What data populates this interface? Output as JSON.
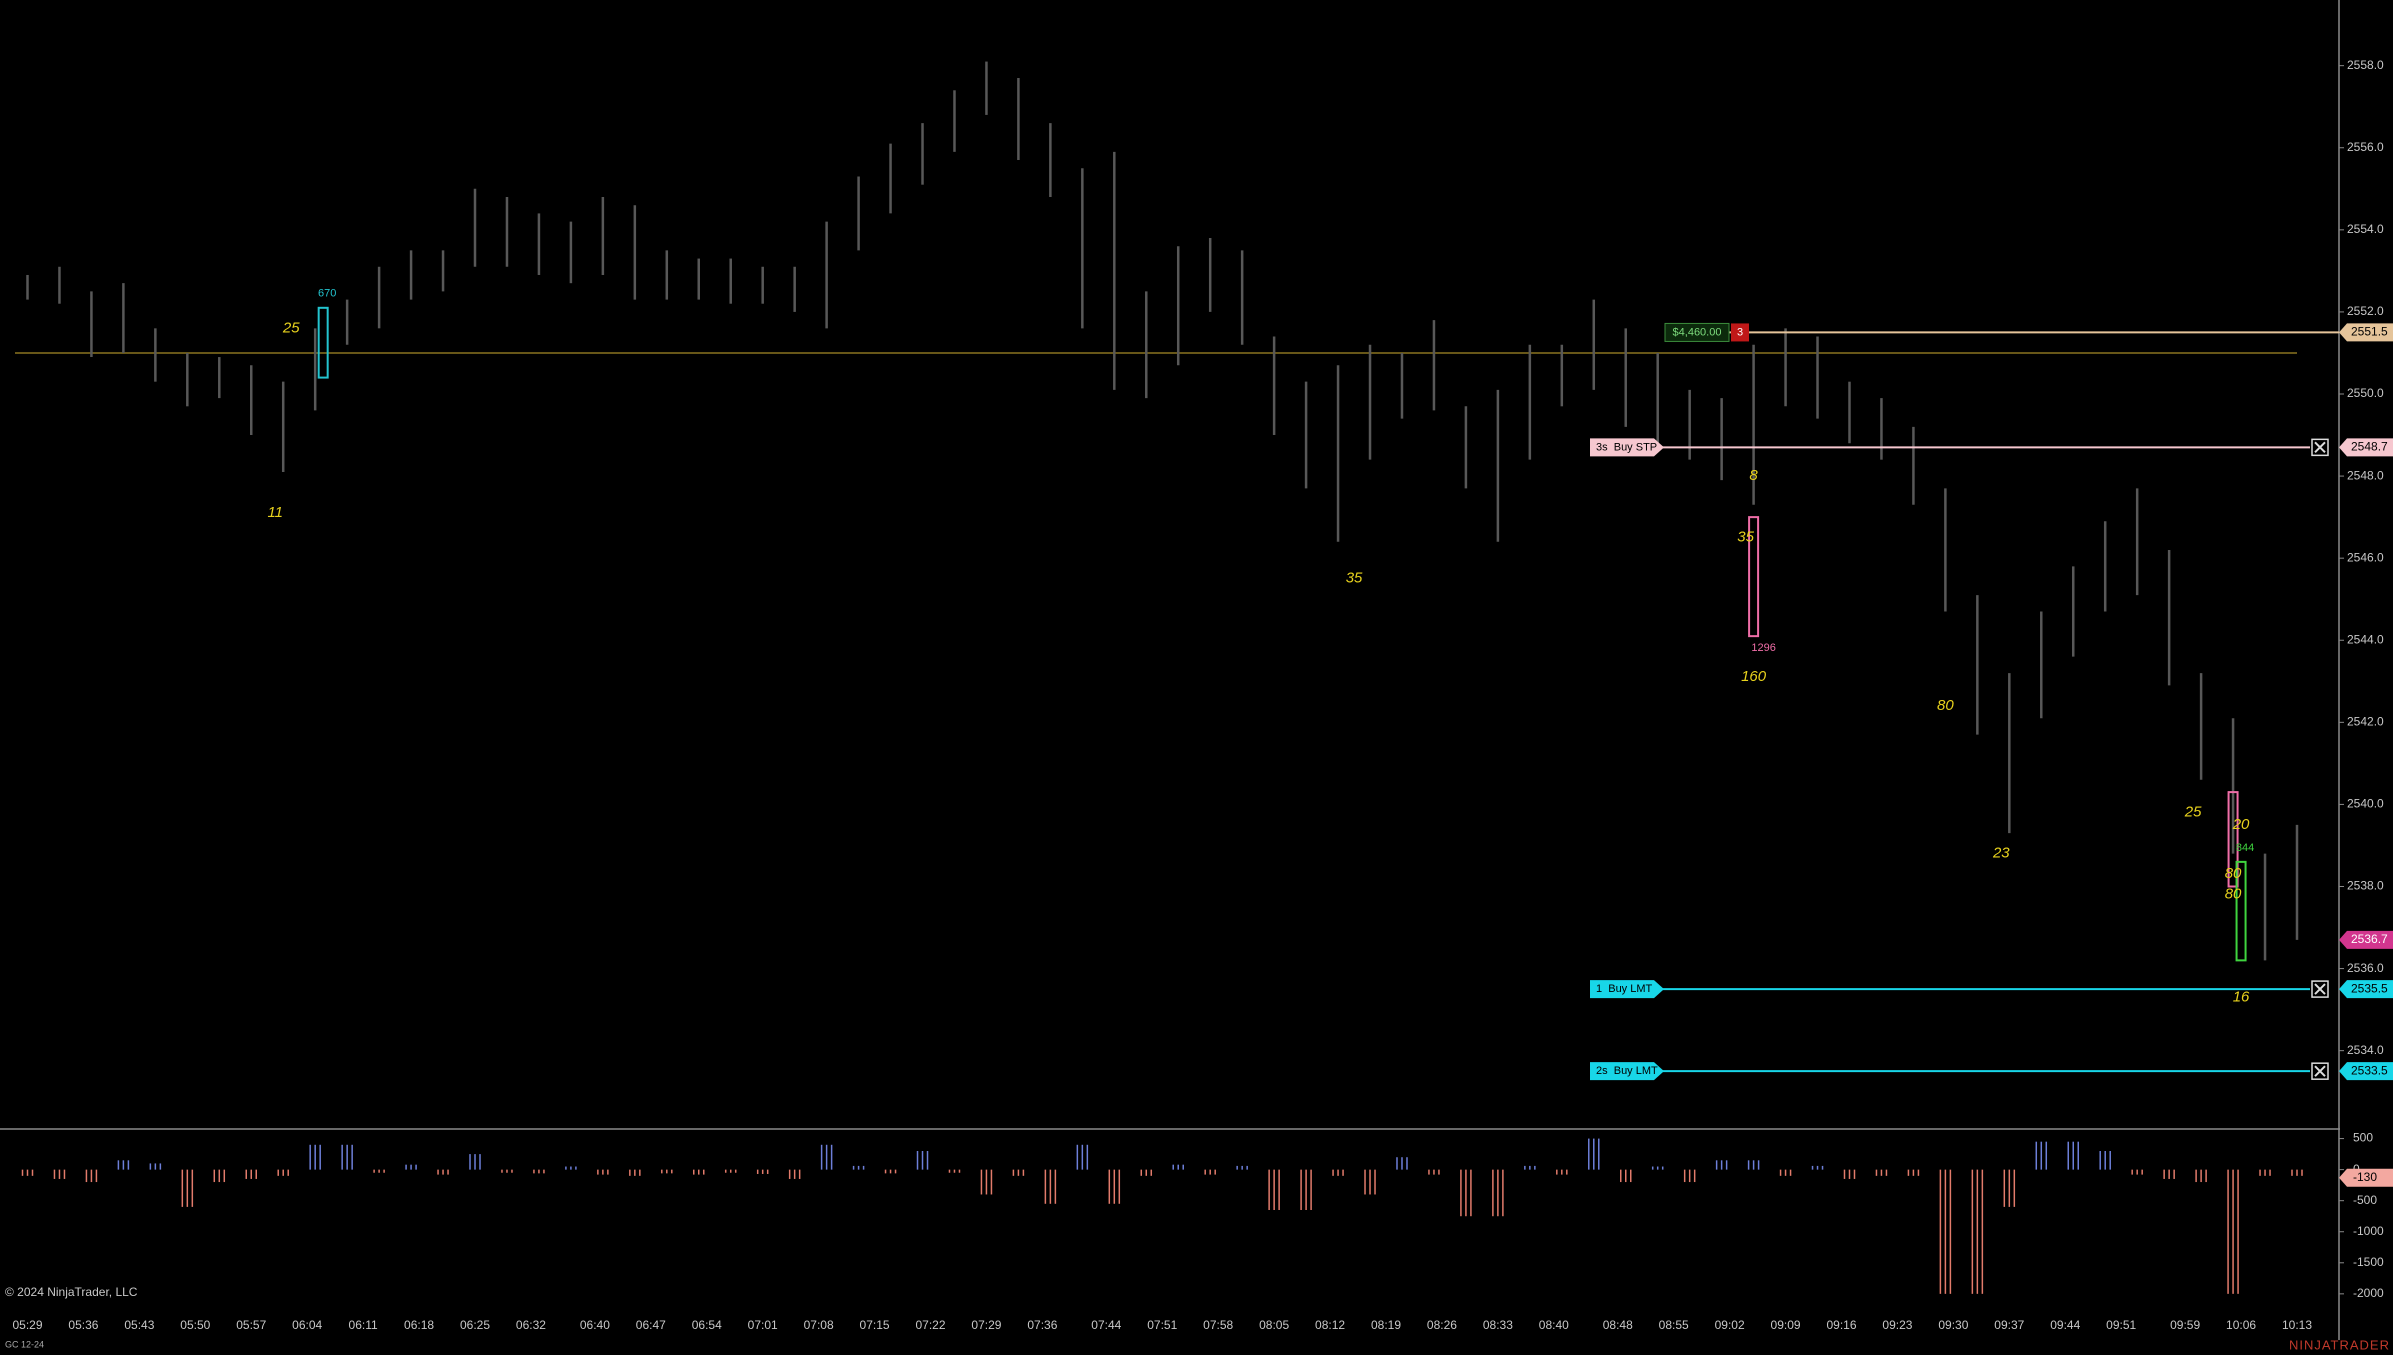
{
  "branding": {
    "copyright": "© 2024 NinjaTrader, LLC",
    "instrument": "GC 12-24",
    "logo": "NINJATRADER"
  },
  "chart_data": [
    {
      "type": "range",
      "color": "#585858",
      "x": [
        "05:29",
        "05:33",
        "05:37",
        "05:41",
        "05:45",
        "05:49",
        "05:53",
        "05:57",
        "06:01",
        "06:05",
        "06:09",
        "06:13",
        "06:17",
        "06:21",
        "06:25",
        "06:29",
        "06:33",
        "06:37",
        "06:41",
        "06:45",
        "06:49",
        "06:53",
        "06:57",
        "07:01",
        "07:05",
        "07:09",
        "07:13",
        "07:17",
        "07:21",
        "07:25",
        "07:29",
        "07:33",
        "07:37",
        "07:41",
        "07:45",
        "07:49",
        "07:53",
        "07:57",
        "08:01",
        "08:05",
        "08:09",
        "08:13",
        "08:17",
        "08:21",
        "08:25",
        "08:29",
        "08:33",
        "08:37",
        "08:41",
        "08:45",
        "08:49",
        "08:53",
        "08:57",
        "09:01",
        "09:05",
        "09:09",
        "09:13",
        "09:17",
        "09:21",
        "09:25",
        "09:29",
        "09:33",
        "09:37",
        "09:41",
        "09:45",
        "09:49",
        "09:53",
        "09:57",
        "10:01",
        "10:05",
        "10:09",
        "10:13"
      ],
      "high": [
        2552.9,
        2553.1,
        2552.5,
        2552.7,
        2551.6,
        2551.0,
        2550.9,
        2550.7,
        2550.3,
        2551.6,
        2552.3,
        2553.1,
        2553.5,
        2553.5,
        2555.0,
        2554.8,
        2554.4,
        2554.2,
        2554.8,
        2554.6,
        2553.5,
        2553.3,
        2553.3,
        2553.1,
        2553.1,
        2554.2,
        2555.3,
        2556.1,
        2556.6,
        2557.4,
        2558.1,
        2557.7,
        2556.6,
        2555.5,
        2555.9,
        2552.5,
        2553.6,
        2553.8,
        2553.5,
        2551.4,
        2550.3,
        2550.7,
        2551.2,
        2551.0,
        2551.8,
        2549.7,
        2550.1,
        2551.2,
        2551.2,
        2552.3,
        2551.6,
        2551.0,
        2550.1,
        2549.9,
        2551.2,
        2551.6,
        2551.4,
        2550.3,
        2549.9,
        2549.2,
        2547.7,
        2545.1,
        2543.2,
        2544.7,
        2545.8,
        2546.9,
        2547.7,
        2546.2,
        2543.2,
        2542.1,
        2538.8,
        2539.5
      ],
      "low": [
        2552.3,
        2552.2,
        2550.9,
        2551.0,
        2550.3,
        2549.7,
        2549.9,
        2549.0,
        2548.1,
        2549.6,
        2551.2,
        2551.6,
        2552.3,
        2552.5,
        2553.1,
        2553.1,
        2552.9,
        2552.7,
        2552.9,
        2552.3,
        2552.3,
        2552.3,
        2552.2,
        2552.2,
        2552.0,
        2551.6,
        2553.5,
        2554.4,
        2555.1,
        2555.9,
        2556.8,
        2555.7,
        2554.8,
        2551.6,
        2550.1,
        2549.9,
        2550.7,
        2552.0,
        2551.2,
        2549.0,
        2547.7,
        2546.4,
        2548.4,
        2549.4,
        2549.6,
        2547.7,
        2546.4,
        2548.4,
        2549.7,
        2550.1,
        2549.2,
        2548.8,
        2548.4,
        2547.9,
        2547.3,
        2549.7,
        2549.4,
        2548.8,
        2548.4,
        2547.3,
        2544.7,
        2541.7,
        2539.3,
        2542.1,
        2543.6,
        2544.7,
        2545.1,
        2542.9,
        2540.6,
        2538.8,
        2536.2,
        2536.7
      ],
      "ylim": [
        2532.14,
        2559.6
      ],
      "yticks": [
        {
          "value": 2534,
          "label": "2534.0"
        },
        {
          "value": 2536,
          "label": "2536.0"
        },
        {
          "value": 2538,
          "label": "2538.0"
        },
        {
          "value": 2540,
          "label": "2540.0"
        },
        {
          "value": 2542,
          "label": "2542.0"
        },
        {
          "value": 2544,
          "label": "2544.0"
        },
        {
          "value": 2546,
          "label": "2546.0"
        },
        {
          "value": 2548,
          "label": "2548.0"
        },
        {
          "value": 2550,
          "label": "2550.0"
        },
        {
          "value": 2552,
          "label": "2552.0"
        },
        {
          "value": 2554,
          "label": "2554.0"
        },
        {
          "value": 2556,
          "label": "2556.0"
        },
        {
          "value": 2558,
          "label": "2558.0"
        }
      ],
      "xticks": [
        "05:29",
        "05:36",
        "05:43",
        "05:50",
        "05:57",
        "06:04",
        "06:11",
        "06:18",
        "06:25",
        "06:32",
        "06:40",
        "06:47",
        "06:54",
        "07:01",
        "07:08",
        "07:15",
        "07:22",
        "07:29",
        "07:36",
        "07:44",
        "07:51",
        "07:58",
        "08:05",
        "08:12",
        "08:19",
        "08:26",
        "08:33",
        "08:40",
        "08:48",
        "08:55",
        "09:02",
        "09:09",
        "09:16",
        "09:23",
        "09:30",
        "09:37",
        "09:44",
        "09:51",
        "09:59",
        "10:06",
        "10:13"
      ],
      "level": {
        "price": 2551.0,
        "color": "#8a7420"
      },
      "position": {
        "pnl": "$4,460.00",
        "qty": 3,
        "price": 2551.5,
        "color": "#e5c49a"
      },
      "orders": [
        {
          "label": "3s  Buy STP",
          "price": 2548.7,
          "color": "#f6c7cf"
        },
        {
          "label": "1  Buy LMT",
          "price": 2535.5,
          "color": "#18d6e8"
        },
        {
          "label": "2s  Buy LMT",
          "price": 2533.5,
          "color": "#18d6e8"
        }
      ],
      "last_price": {
        "price": 2536.7,
        "color": "#d2358e"
      },
      "boxes": [
        {
          "x": "06:06",
          "high": 2552.1,
          "low": 2550.4,
          "color": "#23c4cf",
          "label": "670"
        },
        {
          "x": "09:05",
          "high": 2547.0,
          "low": 2544.1,
          "color": "#f06ea8",
          "label": "1296"
        },
        {
          "x": "10:05",
          "high": 2540.3,
          "low": 2538.0,
          "color": "#f06ea8"
        },
        {
          "x": "10:06",
          "high": 2538.6,
          "low": 2536.2,
          "color": "#3fd43f",
          "label": "844"
        }
      ],
      "annotations": [
        {
          "x": "06:02",
          "y": 2551.6,
          "text": 25
        },
        {
          "x": "06:00",
          "y": 2547.1,
          "text": 11
        },
        {
          "x": "08:15",
          "y": 2545.5,
          "text": 35
        },
        {
          "x": "09:05",
          "y": 2548.0,
          "text": 8
        },
        {
          "x": "09:04",
          "y": 2546.5,
          "text": 35
        },
        {
          "x": "09:05",
          "y": 2543.1,
          "text": 160
        },
        {
          "x": "09:29",
          "y": 2542.4,
          "text": 80
        },
        {
          "x": "09:36",
          "y": 2538.8,
          "text": 23
        },
        {
          "x": "10:00",
          "y": 2539.8,
          "text": 25
        },
        {
          "x": "10:06",
          "y": 2539.5,
          "text": 20
        },
        {
          "x": "10:05",
          "y": 2538.3,
          "text": 80
        },
        {
          "x": "10:05",
          "y": 2537.8,
          "text": 80
        },
        {
          "x": "10:06",
          "y": 2535.3,
          "text": 16
        }
      ]
    },
    {
      "type": "bar",
      "up_color": "#6d7fd9",
      "down_color": "#e27b6b",
      "x": [
        "05:29",
        "05:33",
        "05:37",
        "05:41",
        "05:45",
        "05:49",
        "05:53",
        "05:57",
        "06:01",
        "06:05",
        "06:09",
        "06:13",
        "06:17",
        "06:21",
        "06:25",
        "06:29",
        "06:33",
        "06:37",
        "06:41",
        "06:45",
        "06:49",
        "06:53",
        "06:57",
        "07:01",
        "07:05",
        "07:09",
        "07:13",
        "07:17",
        "07:21",
        "07:25",
        "07:29",
        "07:33",
        "07:37",
        "07:41",
        "07:45",
        "07:49",
        "07:53",
        "07:57",
        "08:01",
        "08:05",
        "08:09",
        "08:13",
        "08:17",
        "08:21",
        "08:25",
        "08:29",
        "08:33",
        "08:37",
        "08:41",
        "08:45",
        "08:49",
        "08:53",
        "08:57",
        "09:01",
        "09:05",
        "09:09",
        "09:13",
        "09:17",
        "09:21",
        "09:25",
        "09:29",
        "09:33",
        "09:37",
        "09:41",
        "09:45",
        "09:49",
        "09:53",
        "09:57",
        "10:01",
        "10:05",
        "10:09",
        "10:13"
      ],
      "values": [
        -100,
        -150,
        -200,
        150,
        100,
        -600,
        -200,
        -150,
        -100,
        400,
        400,
        -50,
        80,
        -80,
        250,
        -50,
        -60,
        50,
        -80,
        -100,
        -60,
        -80,
        -50,
        -70,
        -150,
        400,
        60,
        -60,
        300,
        -50,
        -400,
        -100,
        -550,
        400,
        -550,
        -100,
        80,
        -80,
        60,
        -650,
        -650,
        -100,
        -400,
        200,
        -80,
        -750,
        -750,
        60,
        -80,
        500,
        -200,
        50,
        -200,
        150,
        150,
        -100,
        60,
        -150,
        -100,
        -100,
        -2000,
        -2000,
        -600,
        450,
        450,
        300,
        -80,
        -150,
        -200,
        -2000,
        -100,
        -100
      ],
      "ylim": [
        -2244,
        622
      ],
      "yticks": [
        500,
        0,
        -500,
        -1000,
        -1500,
        -2000
      ],
      "last_value": -130,
      "last_color": "#f3a8a0"
    }
  ]
}
